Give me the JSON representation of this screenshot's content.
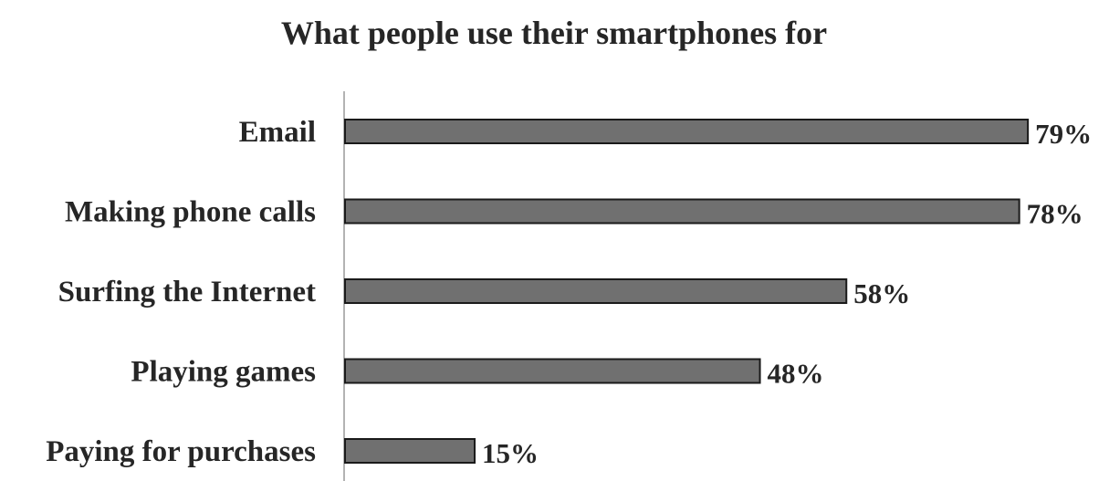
{
  "chart_data": {
    "type": "bar",
    "orientation": "horizontal",
    "title": "What people use their smartphones for",
    "categories": [
      "Email",
      "Making phone calls",
      "Surfing the Internet",
      "Playing games",
      "Paying for purchases"
    ],
    "values": [
      79,
      78,
      58,
      48,
      15
    ],
    "value_labels": [
      "79%",
      "78%",
      "58%",
      "48%",
      "15%"
    ],
    "unit": "%",
    "xlim": [
      0,
      100
    ],
    "grid": false,
    "legend": "none",
    "bar_color": "#707070"
  }
}
